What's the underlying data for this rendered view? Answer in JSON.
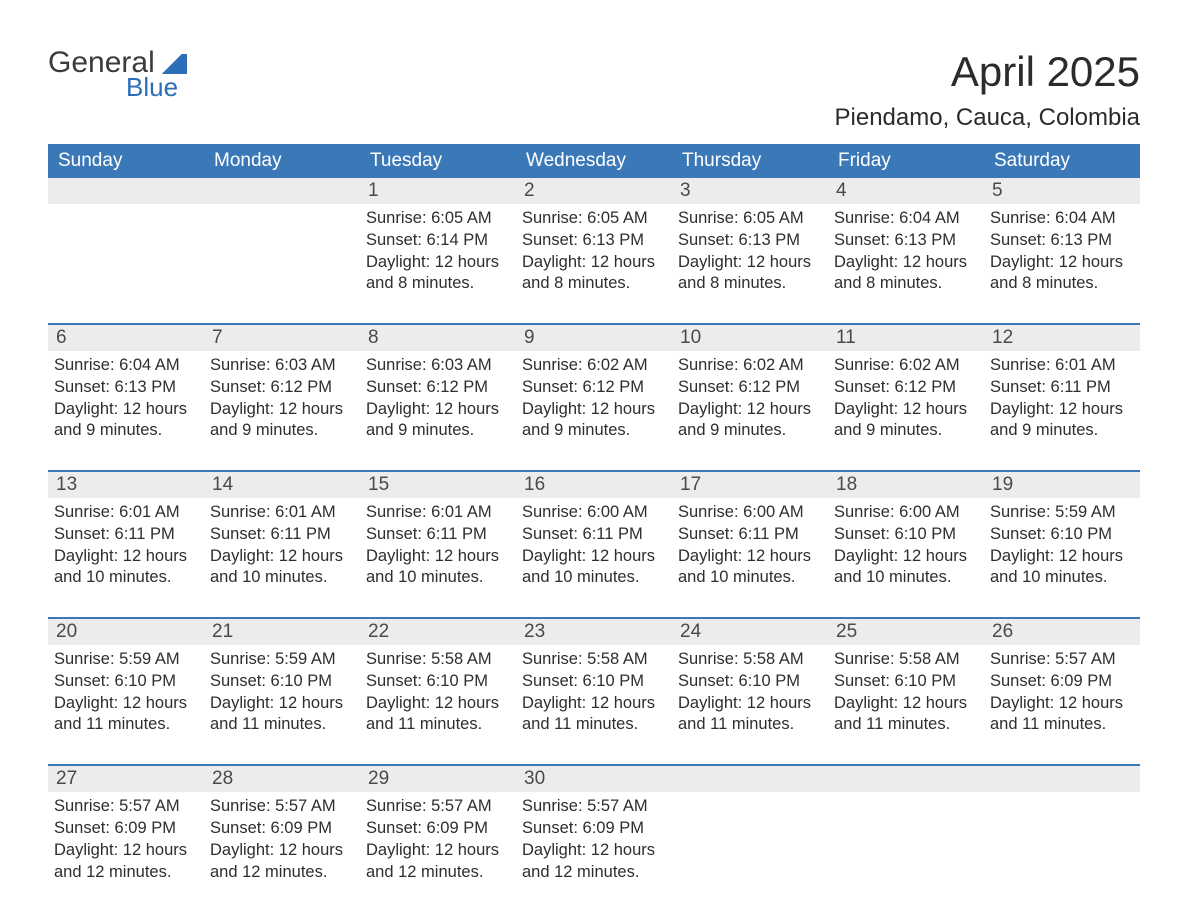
{
  "logo": {
    "word1": "General",
    "word2": "Blue"
  },
  "title": "April 2025",
  "location": "Piendamo, Cauca, Colombia",
  "colors": {
    "header_bg": "#3b78b8",
    "header_text": "#ffffff",
    "daynum_bg": "#ececec",
    "week_divider": "#3b78b8",
    "body_text": "#2e2e2e",
    "page_bg": "#ffffff",
    "logo_accent": "#2d6fb7",
    "logo_text": "#3b3b3b"
  },
  "typography": {
    "title_fontsize_pt": 32,
    "location_fontsize_pt": 18,
    "header_fontsize_pt": 14,
    "daynum_fontsize_pt": 14,
    "body_fontsize_pt": 12
  },
  "layout": {
    "columns": 7,
    "rows": 5,
    "first_day_column_index": 2,
    "days_in_month": 30
  },
  "day_headers": [
    "Sunday",
    "Monday",
    "Tuesday",
    "Wednesday",
    "Thursday",
    "Friday",
    "Saturday"
  ],
  "weeks": [
    [
      {
        "day": "",
        "lines": []
      },
      {
        "day": "",
        "lines": []
      },
      {
        "day": "1",
        "lines": [
          "Sunrise: 6:05 AM",
          "Sunset: 6:14 PM",
          "Daylight: 12 hours",
          "and 8 minutes."
        ]
      },
      {
        "day": "2",
        "lines": [
          "Sunrise: 6:05 AM",
          "Sunset: 6:13 PM",
          "Daylight: 12 hours",
          "and 8 minutes."
        ]
      },
      {
        "day": "3",
        "lines": [
          "Sunrise: 6:05 AM",
          "Sunset: 6:13 PM",
          "Daylight: 12 hours",
          "and 8 minutes."
        ]
      },
      {
        "day": "4",
        "lines": [
          "Sunrise: 6:04 AM",
          "Sunset: 6:13 PM",
          "Daylight: 12 hours",
          "and 8 minutes."
        ]
      },
      {
        "day": "5",
        "lines": [
          "Sunrise: 6:04 AM",
          "Sunset: 6:13 PM",
          "Daylight: 12 hours",
          "and 8 minutes."
        ]
      }
    ],
    [
      {
        "day": "6",
        "lines": [
          "Sunrise: 6:04 AM",
          "Sunset: 6:13 PM",
          "Daylight: 12 hours",
          "and 9 minutes."
        ]
      },
      {
        "day": "7",
        "lines": [
          "Sunrise: 6:03 AM",
          "Sunset: 6:12 PM",
          "Daylight: 12 hours",
          "and 9 minutes."
        ]
      },
      {
        "day": "8",
        "lines": [
          "Sunrise: 6:03 AM",
          "Sunset: 6:12 PM",
          "Daylight: 12 hours",
          "and 9 minutes."
        ]
      },
      {
        "day": "9",
        "lines": [
          "Sunrise: 6:02 AM",
          "Sunset: 6:12 PM",
          "Daylight: 12 hours",
          "and 9 minutes."
        ]
      },
      {
        "day": "10",
        "lines": [
          "Sunrise: 6:02 AM",
          "Sunset: 6:12 PM",
          "Daylight: 12 hours",
          "and 9 minutes."
        ]
      },
      {
        "day": "11",
        "lines": [
          "Sunrise: 6:02 AM",
          "Sunset: 6:12 PM",
          "Daylight: 12 hours",
          "and 9 minutes."
        ]
      },
      {
        "day": "12",
        "lines": [
          "Sunrise: 6:01 AM",
          "Sunset: 6:11 PM",
          "Daylight: 12 hours",
          "and 9 minutes."
        ]
      }
    ],
    [
      {
        "day": "13",
        "lines": [
          "Sunrise: 6:01 AM",
          "Sunset: 6:11 PM",
          "Daylight: 12 hours",
          "and 10 minutes."
        ]
      },
      {
        "day": "14",
        "lines": [
          "Sunrise: 6:01 AM",
          "Sunset: 6:11 PM",
          "Daylight: 12 hours",
          "and 10 minutes."
        ]
      },
      {
        "day": "15",
        "lines": [
          "Sunrise: 6:01 AM",
          "Sunset: 6:11 PM",
          "Daylight: 12 hours",
          "and 10 minutes."
        ]
      },
      {
        "day": "16",
        "lines": [
          "Sunrise: 6:00 AM",
          "Sunset: 6:11 PM",
          "Daylight: 12 hours",
          "and 10 minutes."
        ]
      },
      {
        "day": "17",
        "lines": [
          "Sunrise: 6:00 AM",
          "Sunset: 6:11 PM",
          "Daylight: 12 hours",
          "and 10 minutes."
        ]
      },
      {
        "day": "18",
        "lines": [
          "Sunrise: 6:00 AM",
          "Sunset: 6:10 PM",
          "Daylight: 12 hours",
          "and 10 minutes."
        ]
      },
      {
        "day": "19",
        "lines": [
          "Sunrise: 5:59 AM",
          "Sunset: 6:10 PM",
          "Daylight: 12 hours",
          "and 10 minutes."
        ]
      }
    ],
    [
      {
        "day": "20",
        "lines": [
          "Sunrise: 5:59 AM",
          "Sunset: 6:10 PM",
          "Daylight: 12 hours",
          "and 11 minutes."
        ]
      },
      {
        "day": "21",
        "lines": [
          "Sunrise: 5:59 AM",
          "Sunset: 6:10 PM",
          "Daylight: 12 hours",
          "and 11 minutes."
        ]
      },
      {
        "day": "22",
        "lines": [
          "Sunrise: 5:58 AM",
          "Sunset: 6:10 PM",
          "Daylight: 12 hours",
          "and 11 minutes."
        ]
      },
      {
        "day": "23",
        "lines": [
          "Sunrise: 5:58 AM",
          "Sunset: 6:10 PM",
          "Daylight: 12 hours",
          "and 11 minutes."
        ]
      },
      {
        "day": "24",
        "lines": [
          "Sunrise: 5:58 AM",
          "Sunset: 6:10 PM",
          "Daylight: 12 hours",
          "and 11 minutes."
        ]
      },
      {
        "day": "25",
        "lines": [
          "Sunrise: 5:58 AM",
          "Sunset: 6:10 PM",
          "Daylight: 12 hours",
          "and 11 minutes."
        ]
      },
      {
        "day": "26",
        "lines": [
          "Sunrise: 5:57 AM",
          "Sunset: 6:09 PM",
          "Daylight: 12 hours",
          "and 11 minutes."
        ]
      }
    ],
    [
      {
        "day": "27",
        "lines": [
          "Sunrise: 5:57 AM",
          "Sunset: 6:09 PM",
          "Daylight: 12 hours",
          "and 12 minutes."
        ]
      },
      {
        "day": "28",
        "lines": [
          "Sunrise: 5:57 AM",
          "Sunset: 6:09 PM",
          "Daylight: 12 hours",
          "and 12 minutes."
        ]
      },
      {
        "day": "29",
        "lines": [
          "Sunrise: 5:57 AM",
          "Sunset: 6:09 PM",
          "Daylight: 12 hours",
          "and 12 minutes."
        ]
      },
      {
        "day": "30",
        "lines": [
          "Sunrise: 5:57 AM",
          "Sunset: 6:09 PM",
          "Daylight: 12 hours",
          "and 12 minutes."
        ]
      },
      {
        "day": "",
        "lines": []
      },
      {
        "day": "",
        "lines": []
      },
      {
        "day": "",
        "lines": []
      }
    ]
  ]
}
